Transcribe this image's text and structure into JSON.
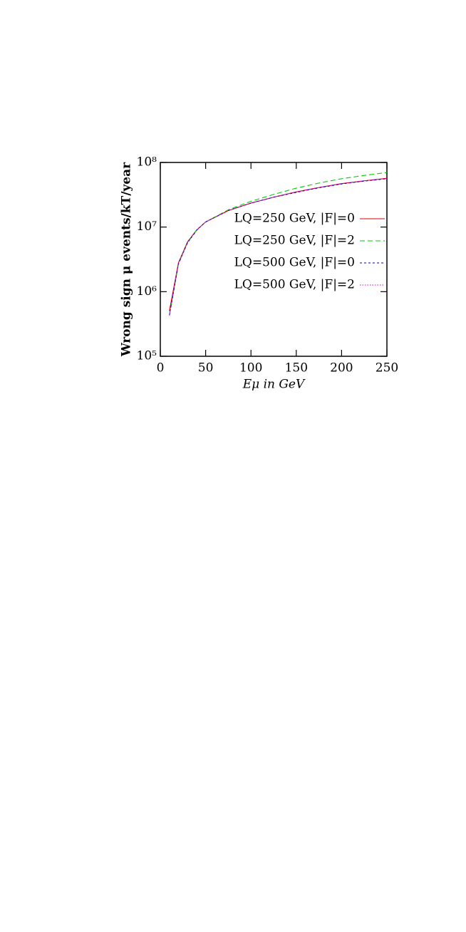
{
  "chart_data": {
    "type": "line",
    "x_label": "Eμ in GeV",
    "y_label": "Wrong sign μ events/kT/year",
    "x": [
      10,
      20,
      30,
      40,
      50,
      75,
      100,
      125,
      150,
      175,
      200,
      225,
      250
    ],
    "series": [
      {
        "name": "LQ=250 GeV, |F|=0",
        "color": "#e00000",
        "linestyle": "solid",
        "values": [
          500000,
          2800000,
          5900000,
          9000000,
          12000000,
          18000000,
          23500000,
          29000000,
          35000000,
          41000000,
          47000000,
          52000000,
          57000000
        ]
      },
      {
        "name": "LQ=250 GeV, |F|=2",
        "color": "#00cc00",
        "linestyle": "dashed",
        "values": [
          430000,
          2700000,
          5800000,
          9000000,
          12000000,
          18500000,
          25000000,
          32000000,
          40000000,
          48000000,
          56000000,
          63000000,
          70000000
        ]
      },
      {
        "name": "LQ=500 GeV, |F|=0",
        "color": "#0000c0",
        "linestyle": "dotted",
        "values": [
          430000,
          2700000,
          5700000,
          8900000,
          12000000,
          18000000,
          23500000,
          29000000,
          34500000,
          40500000,
          46500000,
          51500000,
          56000000
        ]
      },
      {
        "name": "LQ=500 GeV, |F|=2",
        "color": "#d000d0",
        "linestyle": "densely-dotted",
        "values": [
          430000,
          2700000,
          5700000,
          8900000,
          12000000,
          18000000,
          23500000,
          29000000,
          35000000,
          41000000,
          47000000,
          52000000,
          56500000
        ]
      }
    ],
    "xlim": [
      0,
      250
    ],
    "xticks": [
      0,
      50,
      100,
      150,
      200,
      250
    ],
    "ylim": [
      100000,
      100000000
    ],
    "yticks": [
      {
        "value": 100000,
        "label": "10⁵"
      },
      {
        "value": 1000000,
        "label": "10⁶"
      },
      {
        "value": 10000000,
        "label": "10⁷"
      },
      {
        "value": 100000000,
        "label": "10⁸"
      }
    ],
    "ylog": true,
    "legend": "right"
  }
}
